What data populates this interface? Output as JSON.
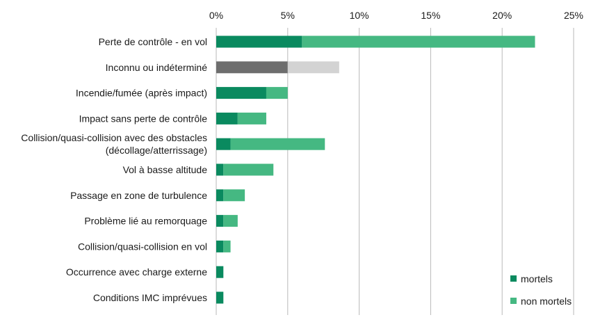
{
  "chart_data": {
    "type": "bar",
    "orientation": "horizontal",
    "stacked": true,
    "title": "",
    "xlabel": "",
    "ylabel": "",
    "xlim": [
      0,
      25
    ],
    "x_ticks": [
      "0%",
      "5%",
      "10%",
      "15%",
      "20%",
      "25%"
    ],
    "x_tick_values": [
      0,
      5,
      10,
      15,
      20,
      25
    ],
    "x_axis_position": "top",
    "grid": "vertical",
    "legend_placement": "bottom-right",
    "categories": [
      "Perte de contrôle - en vol",
      "Inconnu ou indéterminé",
      "Incendie/fumée (après impact)",
      "Impact sans perte de contrôle",
      "Collision/quasi-collision avec des obstacles\n(décollage/atterrissage)",
      "Vol à basse altitude",
      "Passage en zone de turbulence",
      "Problème lié au remorquage",
      "Collision/quasi-collision en vol",
      "Occurrence avec charge externe",
      "Conditions IMC imprévues"
    ],
    "series": [
      {
        "name": "mortels",
        "color": "#0a8a5f",
        "values": [
          6.0,
          5.0,
          3.5,
          1.5,
          1.0,
          0.5,
          0.5,
          0.5,
          0.5,
          0.5,
          0.5
        ]
      },
      {
        "name": "non mortels",
        "color": "#45b882",
        "values": [
          16.3,
          3.6,
          1.5,
          2.0,
          6.6,
          3.5,
          1.5,
          1.0,
          0.5,
          0.0,
          0.0
        ]
      }
    ],
    "special_colors": {
      "Inconnu ou indéterminé": [
        "#6e6e6e",
        "#d3d3d3"
      ]
    }
  },
  "legend": {
    "mortels": "mortels",
    "non_mortels": "non mortels"
  }
}
